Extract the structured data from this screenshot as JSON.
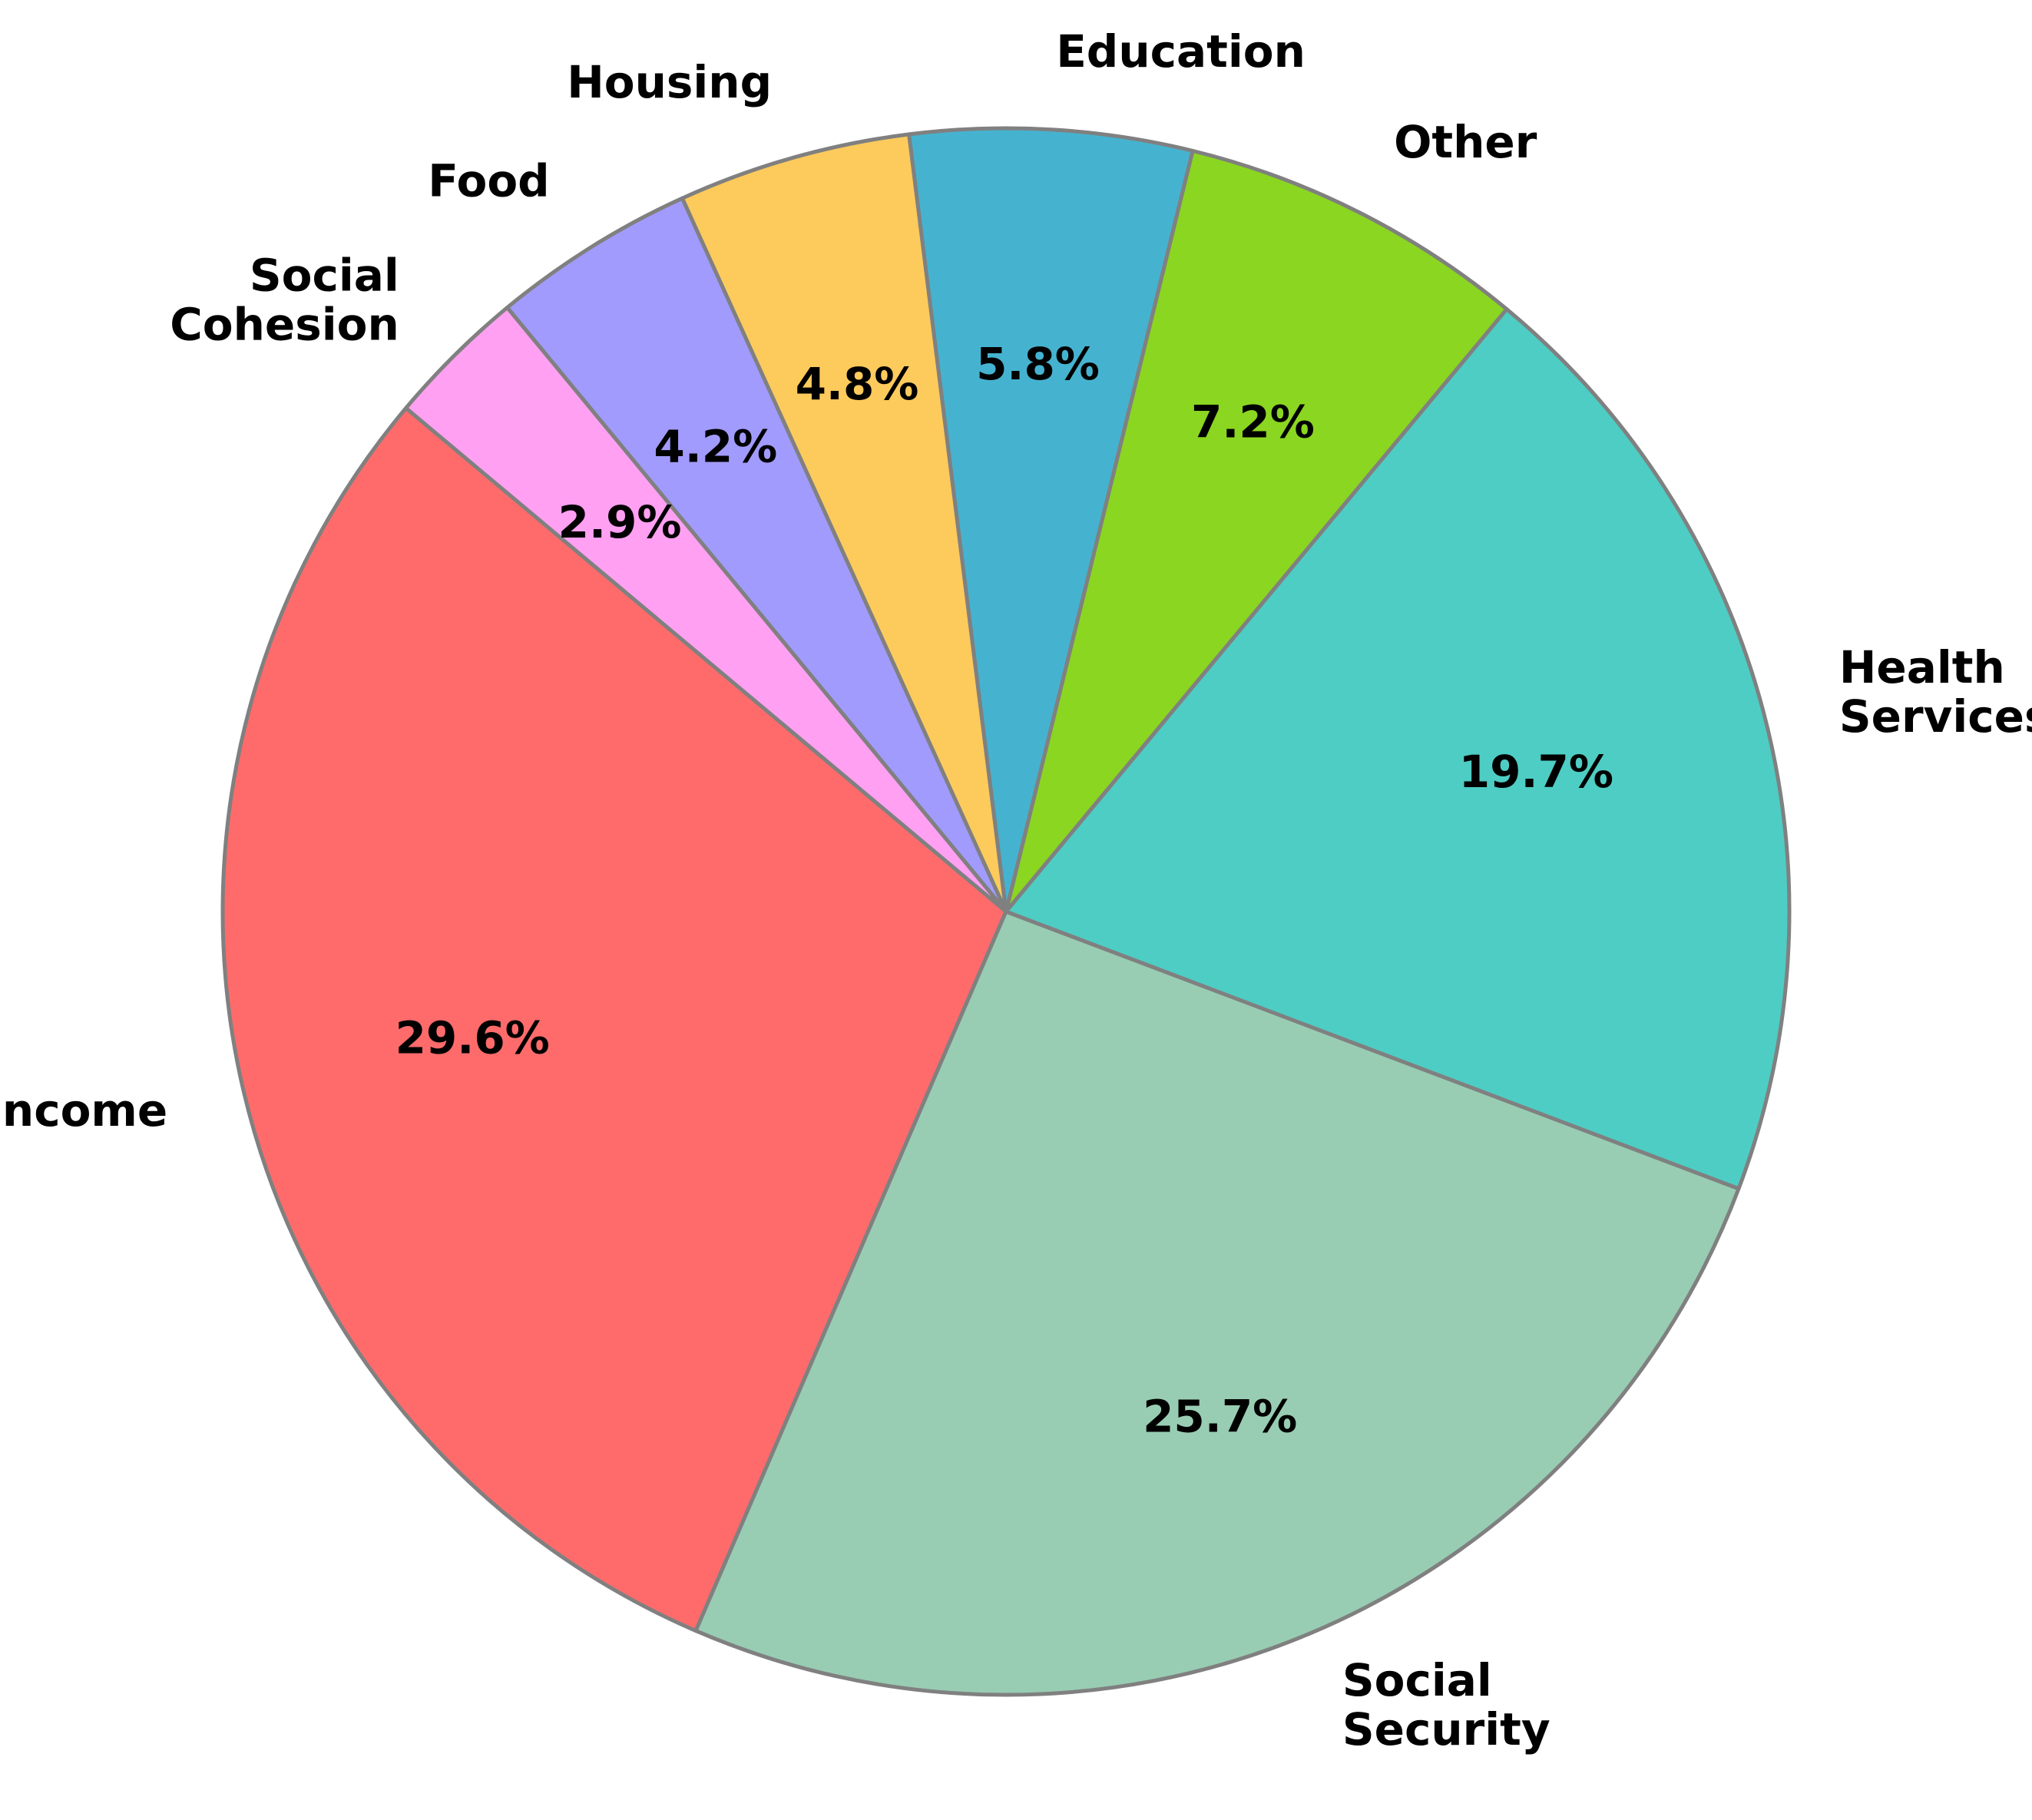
{
  "chart_data": {
    "type": "pie",
    "title": "",
    "start_angle_deg": 140,
    "direction": "counterclockwise",
    "slices": [
      {
        "label": "Income",
        "lines": [
          "Income"
        ],
        "value": 29.6,
        "pct_label": "29.6%",
        "color": "#FF6B6B"
      },
      {
        "label": "Social Security",
        "lines": [
          "Social",
          "Security"
        ],
        "value": 25.7,
        "pct_label": "25.7%",
        "color": "#98CDB3"
      },
      {
        "label": "Health Services",
        "lines": [
          "Health",
          "Services"
        ],
        "value": 19.7,
        "pct_label": "19.7%",
        "color": "#4ECDC4"
      },
      {
        "label": "Other",
        "lines": [
          "Other"
        ],
        "value": 7.2,
        "pct_label": "7.2%",
        "color": "#8BD621"
      },
      {
        "label": "Education",
        "lines": [
          "Education"
        ],
        "value": 5.8,
        "pct_label": "5.8%",
        "color": "#45B3D0"
      },
      {
        "label": "Housing",
        "lines": [
          "Housing"
        ],
        "value": 4.8,
        "pct_label": "4.8%",
        "color": "#FDCA5C"
      },
      {
        "label": "Food",
        "lines": [
          "Food"
        ],
        "value": 4.2,
        "pct_label": "4.2%",
        "color": "#A29BFE"
      },
      {
        "label": "Social Cohesion",
        "lines": [
          "Social",
          "Cohesion"
        ],
        "value": 2.9,
        "pct_label": "2.9%",
        "color": "#FFA0F2"
      }
    ]
  }
}
